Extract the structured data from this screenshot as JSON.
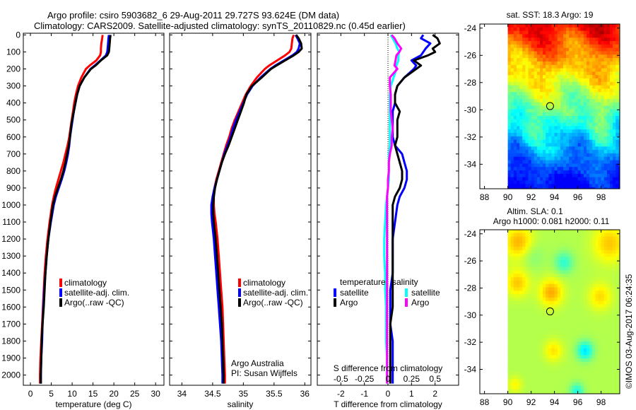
{
  "header": {
    "title_line1": "Argo profile: csiro 5903682_6 29-Aug-2011 29.727S 93.624E (DM data)",
    "title_line2": "Climatology: CARS2009. Satellite-adjusted climatology: synTS_20110829.nc (0.45d earlier)"
  },
  "footer": {
    "credit": "©IMOS 03-Aug-2017 06:24:35"
  },
  "colors": {
    "climatology": "#ff0000",
    "satellite_adj": "#0000ff",
    "argo": "#000000",
    "sal_satellite": "#00ffff",
    "sal_argo": "#ff00ff"
  },
  "chart_data": [
    {
      "id": "temperature",
      "type": "line",
      "title": "",
      "xlabel": "temperature (deg C)",
      "ylabel": "",
      "xlim": [
        -1.7,
        32
      ],
      "ylim": [
        2060,
        -10
      ],
      "xticks": [
        0,
        5,
        10,
        15,
        20,
        25,
        30
      ],
      "yticks": [
        0,
        100,
        200,
        300,
        400,
        500,
        600,
        700,
        800,
        900,
        1000,
        1100,
        1200,
        1300,
        1400,
        1500,
        1600,
        1700,
        1800,
        1900,
        2000
      ],
      "legend": {
        "placement": "lower-center",
        "entries": [
          "climatology",
          "satellite-adj. clim.",
          "Argo(..raw -QC)"
        ]
      },
      "depth": [
        0,
        20,
        50,
        80,
        100,
        120,
        150,
        180,
        200,
        250,
        300,
        350,
        400,
        450,
        500,
        550,
        600,
        650,
        700,
        750,
        800,
        850,
        900,
        950,
        1000,
        1100,
        1200,
        1300,
        1400,
        1500,
        1600,
        1700,
        1800,
        1900,
        2000,
        2050
      ],
      "series": [
        {
          "name": "climatology",
          "color_key": "climatology",
          "values": [
            17.3,
            17.2,
            17.0,
            16.9,
            16.9,
            16.7,
            15.8,
            14.2,
            13.3,
            12.2,
            11.4,
            10.9,
            10.5,
            10.2,
            9.9,
            9.6,
            9.3,
            8.9,
            8.4,
            7.9,
            7.3,
            6.7,
            6.1,
            5.6,
            5.2,
            4.6,
            4.1,
            3.7,
            3.4,
            3.2,
            3.0,
            2.8,
            2.6,
            2.4,
            2.3,
            2.3
          ]
        },
        {
          "name": "satellite-adj. clim.",
          "color_key": "satellite_adj",
          "values": [
            18.8,
            18.7,
            18.6,
            18.5,
            18.4,
            18.1,
            16.8,
            15.4,
            14.4,
            12.9,
            11.8,
            11.2,
            10.8,
            10.4,
            10.1,
            9.8,
            9.5,
            9.3,
            9.0,
            8.6,
            8.1,
            7.5,
            6.8,
            6.1,
            5.6,
            4.9,
            4.3,
            3.9,
            3.6,
            3.3,
            3.1,
            2.9,
            2.8,
            2.6,
            2.5,
            2.5
          ]
        },
        {
          "name": "Argo(..raw -QC)",
          "color_key": "argo",
          "values": [
            19.2,
            19.1,
            19.0,
            18.9,
            18.8,
            18.4,
            16.9,
            15.6,
            14.5,
            12.9,
            11.8,
            11.2,
            10.8,
            10.4,
            10.0,
            9.7,
            9.5,
            9.2,
            8.8,
            8.4,
            7.9,
            7.3,
            6.6,
            5.9,
            5.4,
            4.8,
            4.3,
            3.9,
            3.6,
            3.4,
            3.2,
            2.9,
            2.7,
            2.6,
            2.5,
            2.5
          ]
        }
      ]
    },
    {
      "id": "salinity",
      "type": "line",
      "title": "",
      "xlabel": "salinity",
      "ylabel": "",
      "xlim": [
        33.8,
        36.1
      ],
      "ylim": [
        2060,
        -10
      ],
      "xticks": [
        34,
        34.5,
        35,
        35.5,
        36
      ],
      "xtick_labels": [
        "34",
        "34.5",
        "35",
        "35.5",
        "36"
      ],
      "legend": {
        "placement": "lower-center",
        "entries": [
          "climatology",
          "satellite-adj. clim.",
          "Argo(..raw -QC)"
        ]
      },
      "annotation": [
        "Argo Australia",
        "PI: Susan Wijffels"
      ],
      "depth": [
        0,
        20,
        50,
        80,
        100,
        120,
        150,
        180,
        200,
        250,
        300,
        350,
        400,
        450,
        500,
        550,
        600,
        650,
        700,
        750,
        800,
        850,
        900,
        950,
        1000,
        1050,
        1100,
        1200,
        1300,
        1400,
        1500,
        1600,
        1700,
        1800,
        1900,
        2000,
        2050
      ],
      "series": [
        {
          "name": "climatology",
          "color_key": "climatology",
          "values": [
            35.82,
            35.8,
            35.79,
            35.78,
            35.75,
            35.68,
            35.55,
            35.42,
            35.35,
            35.22,
            35.12,
            35.04,
            34.98,
            34.92,
            34.86,
            34.81,
            34.77,
            34.72,
            34.68,
            34.64,
            34.6,
            34.56,
            34.53,
            34.52,
            34.52,
            34.53,
            34.55,
            34.58,
            34.6,
            34.62,
            34.64,
            34.66,
            34.67,
            34.68,
            34.69,
            34.7,
            34.7
          ]
        },
        {
          "name": "satellite-adj. clim.",
          "color_key": "satellite_adj",
          "values": [
            35.85,
            35.88,
            35.92,
            35.9,
            35.87,
            35.8,
            35.66,
            35.52,
            35.44,
            35.28,
            35.15,
            35.06,
            35.0,
            34.94,
            34.88,
            34.83,
            34.79,
            34.74,
            34.69,
            34.65,
            34.61,
            34.57,
            34.53,
            34.5,
            34.48,
            34.48,
            34.49,
            34.52,
            34.54,
            34.56,
            34.58,
            34.6,
            34.62,
            34.64,
            34.65,
            34.66,
            34.66
          ]
        },
        {
          "name": "Argo(..raw -QC)",
          "color_key": "argo",
          "values": [
            35.86,
            35.9,
            35.94,
            35.95,
            35.9,
            35.82,
            35.68,
            35.54,
            35.45,
            35.3,
            35.14,
            35.05,
            35.01,
            34.96,
            34.91,
            34.86,
            34.81,
            34.76,
            34.7,
            34.65,
            34.61,
            34.57,
            34.54,
            34.52,
            34.51,
            34.51,
            34.52,
            34.55,
            34.57,
            34.59,
            34.61,
            34.63,
            34.65,
            34.66,
            34.67,
            34.68,
            34.68
          ]
        }
      ]
    },
    {
      "id": "differences",
      "type": "line",
      "title": "",
      "xlabel": "T difference from climatology",
      "x2label": "S difference from climatology",
      "xlim": [
        -3,
        3
      ],
      "x2lim": [
        -0.75,
        0.75
      ],
      "ylim": [
        2060,
        -10
      ],
      "xticks": [
        -2,
        -1,
        0,
        1,
        2
      ],
      "x2ticks": [
        -0.5,
        -0.25,
        0,
        0.25,
        0.5
      ],
      "x2tick_labels": [
        "-0.5",
        "-0.25",
        "0",
        "0.25",
        "0.5"
      ],
      "zero_line": "dotted",
      "legend": {
        "placement": "lower-center",
        "groups": [
          {
            "heading": "temperature",
            "entries": [
              "satellite",
              "Argo"
            ]
          },
          {
            "heading": "salinity",
            "entries": [
              "satellite",
              "Argo"
            ]
          }
        ]
      },
      "depth": [
        0,
        20,
        50,
        80,
        100,
        120,
        150,
        180,
        200,
        250,
        300,
        350,
        400,
        450,
        500,
        550,
        600,
        650,
        700,
        750,
        800,
        850,
        900,
        950,
        1000,
        1100,
        1200,
        1300,
        1400,
        1500,
        1600,
        1700,
        1800,
        1900,
        2000,
        2050
      ],
      "series": [
        {
          "name": "temperature satellite",
          "axis": "T",
          "color_key": "satellite_adj",
          "values": [
            1.5,
            1.4,
            1.8,
            1.6,
            1.5,
            1.4,
            1.0,
            1.2,
            1.1,
            0.7,
            0.4,
            0.3,
            0.3,
            0.2,
            0.2,
            0.2,
            0.2,
            0.3,
            0.6,
            0.7,
            0.8,
            0.8,
            0.7,
            0.5,
            0.4,
            0.3,
            0.2,
            0.2,
            0.2,
            0.1,
            0.1,
            0.1,
            0.2,
            0.2,
            0.2,
            0.2
          ]
        },
        {
          "name": "temperature Argo",
          "axis": "T",
          "color_key": "argo",
          "values": [
            1.9,
            2.1,
            2.2,
            1.9,
            2.0,
            1.7,
            1.1,
            1.4,
            1.2,
            0.7,
            0.4,
            0.3,
            0.3,
            0.5,
            0.4,
            0.4,
            0.4,
            0.3,
            0.4,
            0.5,
            0.6,
            0.6,
            0.5,
            0.3,
            0.2,
            0.2,
            0.2,
            0.2,
            0.2,
            0.2,
            0.2,
            0.1,
            0.1,
            0.1,
            0.1,
            0.1
          ]
        },
        {
          "name": "salinity satellite",
          "axis": "S",
          "color_key": "sal_satellite",
          "values": [
            0.03,
            0.05,
            0.08,
            0.1,
            0.12,
            0.11,
            0.11,
            0.09,
            0.09,
            0.06,
            0.03,
            0.02,
            0.02,
            0.02,
            0.02,
            0.02,
            0.02,
            0.02,
            0.01,
            0.01,
            0.01,
            0.01,
            0.0,
            -0.01,
            -0.02,
            -0.03,
            -0.04,
            -0.04,
            -0.03,
            -0.03,
            -0.02,
            -0.02,
            -0.02,
            -0.01,
            -0.01,
            -0.01
          ]
        },
        {
          "name": "salinity Argo",
          "axis": "S",
          "color_key": "sal_argo",
          "values": [
            0.04,
            0.07,
            0.1,
            0.14,
            0.12,
            0.09,
            0.08,
            0.07,
            0.1,
            0.02,
            0.02,
            0.03,
            0.03,
            0.03,
            0.04,
            0.05,
            0.04,
            0.04,
            0.02,
            0.01,
            0.01,
            0.0,
            0.0,
            -0.01,
            -0.01,
            -0.01,
            -0.01,
            -0.01,
            -0.01,
            -0.01,
            -0.01,
            -0.01,
            -0.01,
            -0.01,
            -0.01,
            -0.01
          ]
        }
      ]
    },
    {
      "id": "sst_map",
      "type": "heatmap",
      "title": "sat. SST: 18.3 Argo: 19",
      "xlim": [
        87.6,
        99.6
      ],
      "ylim": [
        -35.8,
        -23.7
      ],
      "xticks": [
        88,
        90,
        92,
        94,
        96,
        98
      ],
      "yticks": [
        -24,
        -26,
        -28,
        -30,
        -32,
        -34
      ],
      "data_lon_range": [
        90,
        99.6
      ],
      "marker": {
        "lon": 93.624,
        "lat": -29.727
      },
      "colormap": "jet",
      "description": "warm (red/orange) in north, yellow near -28 to -30, green -30 to -32, blue south of -33"
    },
    {
      "id": "sla_map",
      "type": "heatmap",
      "title": "Altim. SLA: 0.1",
      "subtitle": "Argo h1000: 0.081 h2000: 0.11",
      "xlim": [
        87.6,
        99.6
      ],
      "ylim": [
        -35.8,
        -23.7
      ],
      "xticks": [
        88,
        90,
        92,
        94,
        96,
        98
      ],
      "yticks": [
        -24,
        -26,
        -28,
        -30,
        -32,
        -34
      ],
      "data_lon_range": [
        90,
        99.6
      ],
      "marker": {
        "lon": 93.624,
        "lat": -29.727
      },
      "colormap": "jet",
      "description": "mostly green with yellow patches at 91E -24..-28, 93.5E -28, 98E -25; cyan lows near 96.5E -32.5 and 94.5E -26"
    }
  ]
}
